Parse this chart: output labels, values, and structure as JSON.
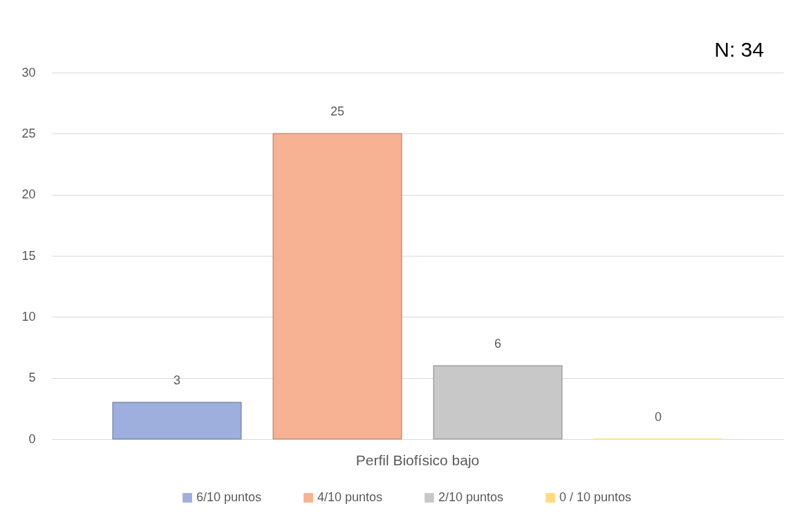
{
  "chart_data": {
    "type": "bar",
    "categories": [
      "Perfil Biofísico bajo"
    ],
    "series": [
      {
        "name": "6/10 puntos",
        "color": "#9eaedd",
        "values": [
          3
        ]
      },
      {
        "name": "4/10 puntos",
        "color": "#f6b293",
        "values": [
          25
        ]
      },
      {
        "name": "2/10 puntos",
        "color": "#c8c8c8",
        "values": [
          6
        ]
      },
      {
        "name": "0 / 10 puntos",
        "color": "#ffdc80",
        "values": [
          0
        ]
      }
    ],
    "ylim": [
      0,
      30
    ],
    "yticks": [
      0,
      5,
      10,
      15,
      20,
      25,
      30
    ],
    "grid": "y",
    "legend": "bottom",
    "data_labels": true,
    "annotations": [
      "N: 34"
    ]
  }
}
